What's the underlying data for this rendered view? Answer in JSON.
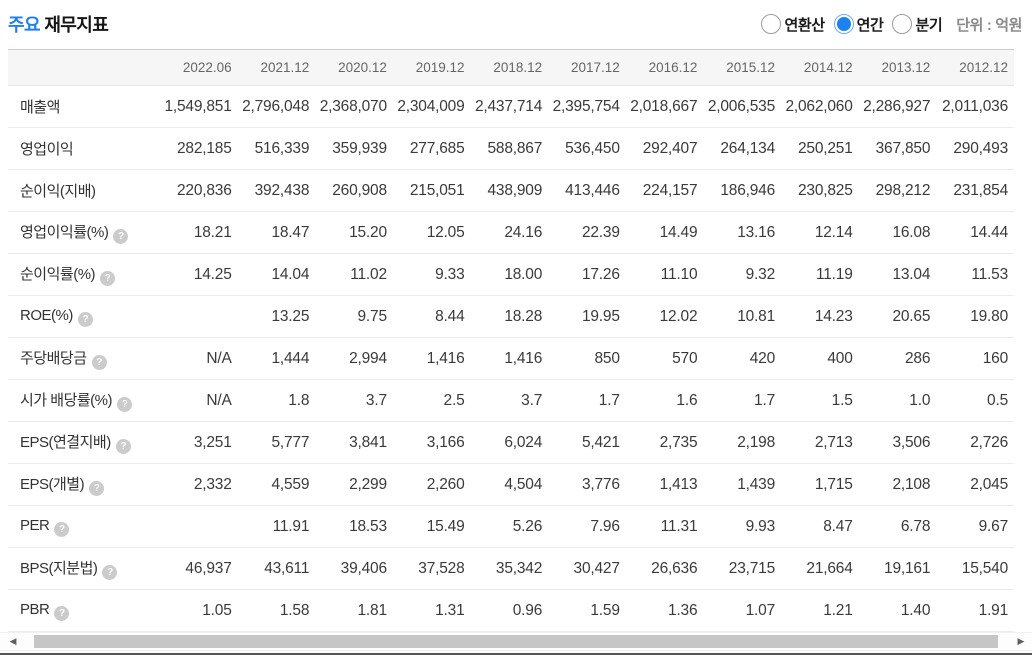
{
  "header": {
    "title_highlight": "주요",
    "title_rest": "재무지표",
    "radios": [
      {
        "label": "연환산",
        "selected": false
      },
      {
        "label": "연간",
        "selected": true
      },
      {
        "label": "분기",
        "selected": false
      }
    ],
    "unit_label": "단위 : 억원"
  },
  "icons": {
    "help_icon": "?",
    "scroll_left_icon": "◀",
    "scroll_right_icon": "▶"
  },
  "colors": {
    "accent_blue": "#1e80f0",
    "radio_selected_blue": "#1b82ef",
    "header_bg": "#f6f6f6"
  },
  "table": {
    "columns": [
      "2022.06",
      "2021.12",
      "2020.12",
      "2019.12",
      "2018.12",
      "2017.12",
      "2016.12",
      "2015.12",
      "2014.12",
      "2013.12",
      "2012.12"
    ],
    "rows": [
      {
        "label": "매출액",
        "help": false,
        "values": [
          "1,549,851",
          "2,796,048",
          "2,368,070",
          "2,304,009",
          "2,437,714",
          "2,395,754",
          "2,018,667",
          "2,006,535",
          "2,062,060",
          "2,286,927",
          "2,011,036"
        ]
      },
      {
        "label": "영업이익",
        "help": false,
        "values": [
          "282,185",
          "516,339",
          "359,939",
          "277,685",
          "588,867",
          "536,450",
          "292,407",
          "264,134",
          "250,251",
          "367,850",
          "290,493"
        ]
      },
      {
        "label": "순이익(지배)",
        "help": false,
        "values": [
          "220,836",
          "392,438",
          "260,908",
          "215,051",
          "438,909",
          "413,446",
          "224,157",
          "186,946",
          "230,825",
          "298,212",
          "231,854"
        ]
      },
      {
        "label": "영업이익률(%)",
        "help": true,
        "values": [
          "18.21",
          "18.47",
          "15.20",
          "12.05",
          "24.16",
          "22.39",
          "14.49",
          "13.16",
          "12.14",
          "16.08",
          "14.44"
        ]
      },
      {
        "label": "순이익률(%)",
        "help": true,
        "values": [
          "14.25",
          "14.04",
          "11.02",
          "9.33",
          "18.00",
          "17.26",
          "11.10",
          "9.32",
          "11.19",
          "13.04",
          "11.53"
        ]
      },
      {
        "label": "ROE(%)",
        "help": true,
        "values": [
          "",
          "13.25",
          "9.75",
          "8.44",
          "18.28",
          "19.95",
          "12.02",
          "10.81",
          "14.23",
          "20.65",
          "19.80"
        ]
      },
      {
        "label": "주당배당금",
        "help": true,
        "values": [
          "N/A",
          "1,444",
          "2,994",
          "1,416",
          "1,416",
          "850",
          "570",
          "420",
          "400",
          "286",
          "160"
        ]
      },
      {
        "label": "시가 배당률(%)",
        "help": true,
        "values": [
          "N/A",
          "1.8",
          "3.7",
          "2.5",
          "3.7",
          "1.7",
          "1.6",
          "1.7",
          "1.5",
          "1.0",
          "0.5"
        ]
      },
      {
        "label": "EPS(연결지배)",
        "help": true,
        "values": [
          "3,251",
          "5,777",
          "3,841",
          "3,166",
          "6,024",
          "5,421",
          "2,735",
          "2,198",
          "2,713",
          "3,506",
          "2,726"
        ]
      },
      {
        "label": "EPS(개별)",
        "help": true,
        "values": [
          "2,332",
          "4,559",
          "2,299",
          "2,260",
          "4,504",
          "3,776",
          "1,413",
          "1,439",
          "1,715",
          "2,108",
          "2,045"
        ]
      },
      {
        "label": "PER",
        "help": true,
        "values": [
          "",
          "11.91",
          "18.53",
          "15.49",
          "5.26",
          "7.96",
          "11.31",
          "9.93",
          "8.47",
          "6.78",
          "9.67"
        ]
      },
      {
        "label": "BPS(지분법)",
        "help": true,
        "values": [
          "46,937",
          "43,611",
          "39,406",
          "37,528",
          "35,342",
          "30,427",
          "26,636",
          "23,715",
          "21,664",
          "19,161",
          "15,540"
        ]
      },
      {
        "label": "PBR",
        "help": true,
        "values": [
          "1.05",
          "1.58",
          "1.81",
          "1.31",
          "0.96",
          "1.59",
          "1.36",
          "1.07",
          "1.21",
          "1.40",
          "1.91"
        ]
      }
    ]
  }
}
